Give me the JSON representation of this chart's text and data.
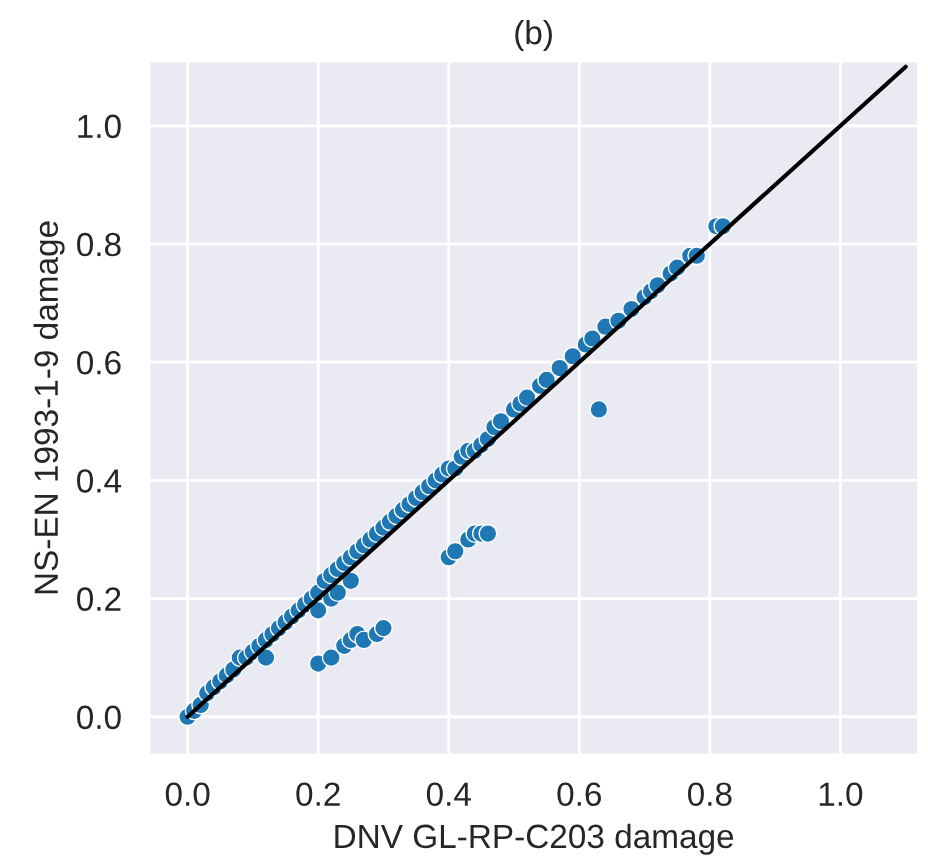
{
  "chart_data": {
    "type": "scatter",
    "title": "(b)",
    "xlabel": "DNV GL-RP-C203 damage",
    "ylabel": "NS-EN 1993-1-9 damage",
    "xlim": [
      -0.06,
      1.12
    ],
    "ylim": [
      -0.065,
      1.11
    ],
    "xticks": [
      {
        "value": 0,
        "label": "0.0"
      },
      0.2,
      0.4,
      0.6,
      0.8,
      {
        "value": 1,
        "label": "1.0"
      }
    ],
    "yticks": [
      {
        "value": 0,
        "label": "0.0"
      },
      0.2,
      0.4,
      0.6,
      0.8,
      {
        "value": 1,
        "label": "1.0"
      }
    ],
    "grid": true,
    "marker": "circle",
    "series": [
      {
        "color": "#1f77b4",
        "x": [
          0.0,
          0.01,
          0.02,
          0.03,
          0.04,
          0.05,
          0.06,
          0.07,
          0.08,
          0.09,
          0.1,
          0.11,
          0.12,
          0.13,
          0.14,
          0.15,
          0.16,
          0.17,
          0.18,
          0.19,
          0.2,
          0.21,
          0.22,
          0.23,
          0.24,
          0.25,
          0.26,
          0.27,
          0.28,
          0.29,
          0.3,
          0.31,
          0.32,
          0.33,
          0.34,
          0.35,
          0.36,
          0.37,
          0.38,
          0.39,
          0.4,
          0.41,
          0.42,
          0.43,
          0.44,
          0.45,
          0.46,
          0.47,
          0.48,
          0.5,
          0.51,
          0.52,
          0.54,
          0.55,
          0.57,
          0.59,
          0.61,
          0.62,
          0.64,
          0.66,
          0.68,
          0.7,
          0.71,
          0.72,
          0.74,
          0.75,
          0.77,
          0.78,
          0.81,
          0.82,
          0.12,
          0.2,
          0.22,
          0.23,
          0.25,
          0.2,
          0.22,
          0.24,
          0.25,
          0.26,
          0.27,
          0.29,
          0.3,
          0.4,
          0.41,
          0.43,
          0.44,
          0.45,
          0.46,
          0.63
        ],
        "values": [
          0.0,
          0.01,
          0.02,
          0.04,
          0.05,
          0.06,
          0.07,
          0.08,
          0.1,
          0.1,
          0.11,
          0.12,
          0.13,
          0.14,
          0.15,
          0.16,
          0.17,
          0.18,
          0.19,
          0.2,
          0.21,
          0.23,
          0.24,
          0.25,
          0.26,
          0.27,
          0.28,
          0.29,
          0.3,
          0.31,
          0.32,
          0.33,
          0.34,
          0.35,
          0.36,
          0.37,
          0.38,
          0.39,
          0.4,
          0.41,
          0.42,
          0.42,
          0.44,
          0.45,
          0.45,
          0.46,
          0.47,
          0.49,
          0.5,
          0.52,
          0.53,
          0.54,
          0.56,
          0.57,
          0.59,
          0.61,
          0.63,
          0.64,
          0.66,
          0.67,
          0.69,
          0.71,
          0.72,
          0.73,
          0.75,
          0.76,
          0.78,
          0.78,
          0.83,
          0.83,
          0.1,
          0.18,
          0.2,
          0.21,
          0.23,
          0.09,
          0.1,
          0.12,
          0.13,
          0.14,
          0.13,
          0.14,
          0.15,
          0.27,
          0.28,
          0.3,
          0.31,
          0.31,
          0.31,
          0.52
        ]
      },
      {
        "type": "line",
        "color": "#000000",
        "x": [
          0.0,
          1.1
        ],
        "values": [
          0.0,
          1.1
        ],
        "marker": "none"
      }
    ]
  }
}
